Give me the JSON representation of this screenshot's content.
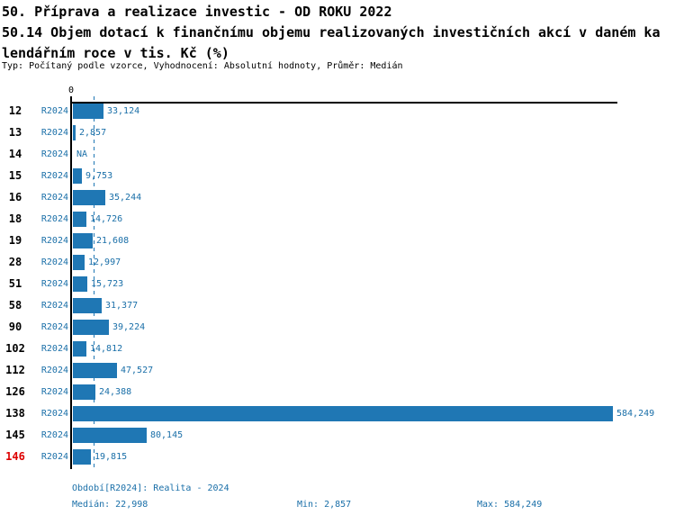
{
  "header": {
    "title_lines": [
      "50. Příprava a realizace investic - OD ROKU 2022",
      "50.14 Objem dotací k finančnímu objemu realizovaných investičních akcí v daném ka",
      "lendářním roce v tis. Kč (%)"
    ],
    "subtitle": "Typ: Počítaný podle vzorce, Vyhodnocení: Absolutní hodnoty, Průměr: Medián"
  },
  "chart_data": {
    "type": "bar",
    "orientation": "horizontal",
    "title": "50.14 Objem dotací k finančnímu objemu realizovaných investičních akcí v daném kalendářním roce v tis. Kč (%)",
    "axis_zero_label": "0",
    "series_label": "R2024",
    "x_max": 584249,
    "median_value": 22998,
    "median_line": true,
    "rows": [
      {
        "id": "12",
        "value": 33124,
        "label": "33,124",
        "highlight": "none"
      },
      {
        "id": "13",
        "value": 2857,
        "label": "2,857",
        "highlight": "none"
      },
      {
        "id": "14",
        "value": null,
        "label": "NA",
        "highlight": "none"
      },
      {
        "id": "15",
        "value": 9753,
        "label": "9,753",
        "highlight": "none"
      },
      {
        "id": "16",
        "value": 35244,
        "label": "35,244",
        "highlight": "none"
      },
      {
        "id": "18",
        "value": 14726,
        "label": "14,726",
        "highlight": "none"
      },
      {
        "id": "19",
        "value": 21608,
        "label": "21,608",
        "highlight": "none"
      },
      {
        "id": "28",
        "value": 12997,
        "label": "12,997",
        "highlight": "none"
      },
      {
        "id": "51",
        "value": 15723,
        "label": "15,723",
        "highlight": "none"
      },
      {
        "id": "58",
        "value": 31377,
        "label": "31,377",
        "highlight": "none"
      },
      {
        "id": "90",
        "value": 39224,
        "label": "39,224",
        "highlight": "none"
      },
      {
        "id": "102",
        "value": 14812,
        "label": "14,812",
        "highlight": "none"
      },
      {
        "id": "112",
        "value": 47527,
        "label": "47,527",
        "highlight": "none"
      },
      {
        "id": "126",
        "value": 24388,
        "label": "24,388",
        "highlight": "none"
      },
      {
        "id": "138",
        "value": 584249,
        "label": "584,249",
        "highlight": "none"
      },
      {
        "id": "145",
        "value": 80145,
        "label": "80,145",
        "highlight": "none"
      },
      {
        "id": "146",
        "value": 19815,
        "label": "19,815",
        "highlight": "red"
      }
    ]
  },
  "footer": {
    "period": "Období[R2024]: Realita - 2024",
    "median": "Medián: 22,998",
    "min": "Min: 2,857",
    "max": "Max: 584,249"
  },
  "colors": {
    "bar": "#1f77b4",
    "blue_text": "#1a6fa8",
    "red_text": "#dd0000",
    "axis": "#000000"
  }
}
